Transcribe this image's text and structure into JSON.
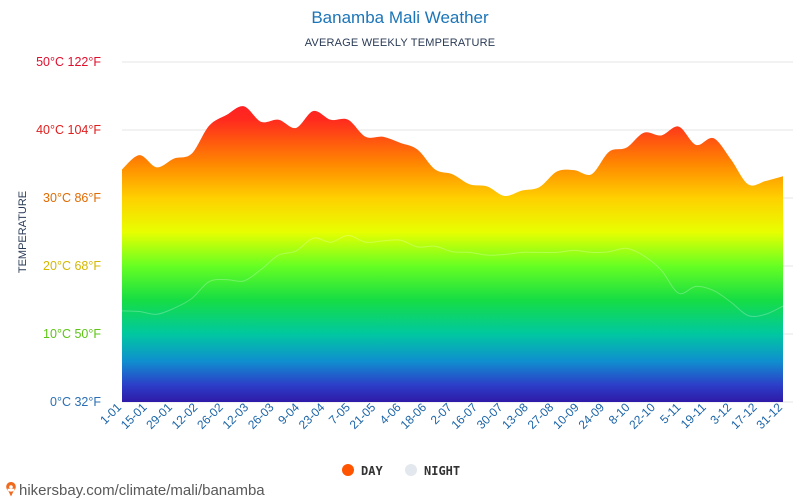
{
  "chart_data": {
    "type": "area",
    "title": "Banamba Mali Weather",
    "subtitle": "AVERAGE WEEKLY TEMPERATURE",
    "ylabel": "TEMPERATURE",
    "ylim": [
      0,
      50
    ],
    "yticks": [
      {
        "value": 0,
        "label": "0°C 32°F",
        "color": "#2a6fb4"
      },
      {
        "value": 10,
        "label": "10°C 50°F",
        "color": "#5ec417"
      },
      {
        "value": 20,
        "label": "20°C 68°F",
        "color": "#d4b800"
      },
      {
        "value": 30,
        "label": "30°C 86°F",
        "color": "#e06b00"
      },
      {
        "value": 40,
        "label": "40°C 104°F",
        "color": "#e01e1e"
      },
      {
        "value": 50,
        "label": "50°C 122°F",
        "color": "#e0102f"
      }
    ],
    "xlabels": [
      "1-01",
      "15-01",
      "29-01",
      "12-02",
      "26-02",
      "12-03",
      "26-03",
      "9-04",
      "23-04",
      "7-05",
      "21-05",
      "4-06",
      "18-06",
      "2-07",
      "16-07",
      "30-07",
      "13-08",
      "27-08",
      "10-09",
      "24-09",
      "8-10",
      "22-10",
      "5-11",
      "19-11",
      "3-12",
      "17-12",
      "31-12"
    ],
    "series": [
      {
        "name": "DAY",
        "color": "#ff5500",
        "values": [
          34.2,
          36.3,
          34.5,
          35.8,
          36.5,
          40.6,
          42.2,
          43.5,
          41.2,
          41.5,
          40.3,
          42.8,
          41.5,
          41.5,
          39.0,
          39.0,
          38.1,
          37.1,
          34.2,
          33.5,
          32.0,
          31.7,
          30.3,
          31.1,
          31.6,
          33.9,
          34.1,
          33.5,
          36.8,
          37.4,
          39.6,
          39.2,
          40.5,
          37.8,
          38.8,
          35.7,
          32.0,
          32.5,
          33.2
        ]
      },
      {
        "name": "NIGHT",
        "color": "#e3e8ee",
        "values": [
          13.4,
          13.3,
          12.9,
          13.8,
          15.2,
          17.7,
          18.0,
          17.8,
          19.5,
          21.6,
          22.2,
          24.1,
          23.5,
          24.5,
          23.5,
          23.7,
          23.8,
          22.8,
          22.9,
          22.1,
          22.0,
          21.6,
          21.7,
          22.0,
          22.0,
          22.0,
          22.3,
          22.0,
          22.1,
          22.6,
          21.5,
          19.4,
          16.0,
          17.0,
          16.4,
          14.7,
          12.7,
          12.9,
          14.1
        ]
      }
    ]
  },
  "credit": "hikersbay.com/climate/mali/banamba",
  "colors": {
    "day_legend": "#ff5500",
    "night_legend": "#e3e8ee",
    "credit_pin": "#f06a1e"
  }
}
